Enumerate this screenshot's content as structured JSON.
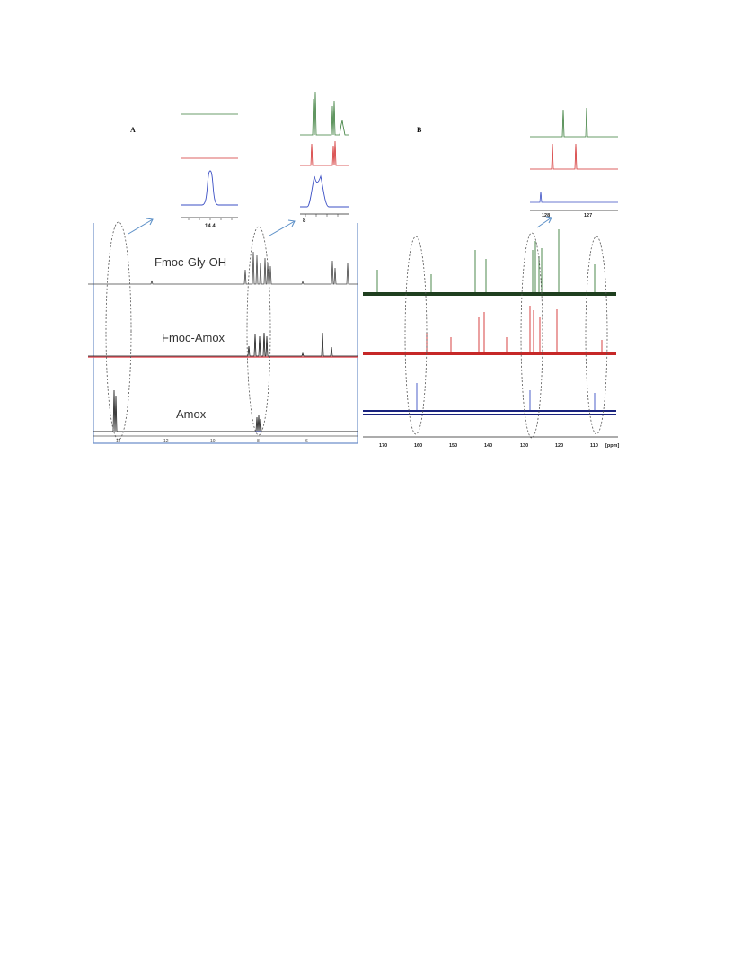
{
  "figure": {
    "panels": [
      {
        "letter": "A",
        "traces": [
          {
            "name": "Fmoc-Gly-OH",
            "color": "#444444"
          },
          {
            "name": "Fmoc-Amox",
            "color": "#e8575f"
          },
          {
            "name": "Amox",
            "color": "#2a2a2a"
          }
        ],
        "x_ticks": [
          "14",
          "12",
          "10",
          "8",
          "6"
        ],
        "inset_left_tick": "14.4",
        "inset_right_tick": "8"
      },
      {
        "letter": "B",
        "traces": [
          {
            "name": "",
            "color": "#1f3f1f"
          },
          {
            "name": "",
            "color": "#c62828"
          },
          {
            "name": "",
            "color": "#1a237e"
          }
        ],
        "x_ticks": [
          "170",
          "160",
          "150",
          "140",
          "130",
          "120",
          "110",
          "[ppm]"
        ],
        "inset_ticks": [
          "128",
          "127"
        ]
      }
    ],
    "colors": {
      "green": "#3a7d3a",
      "red": "#d32f2f",
      "blue": "#3b4fc4",
      "arrow": "#5b8fc7",
      "axis_blue": "#6d8fc9"
    }
  }
}
